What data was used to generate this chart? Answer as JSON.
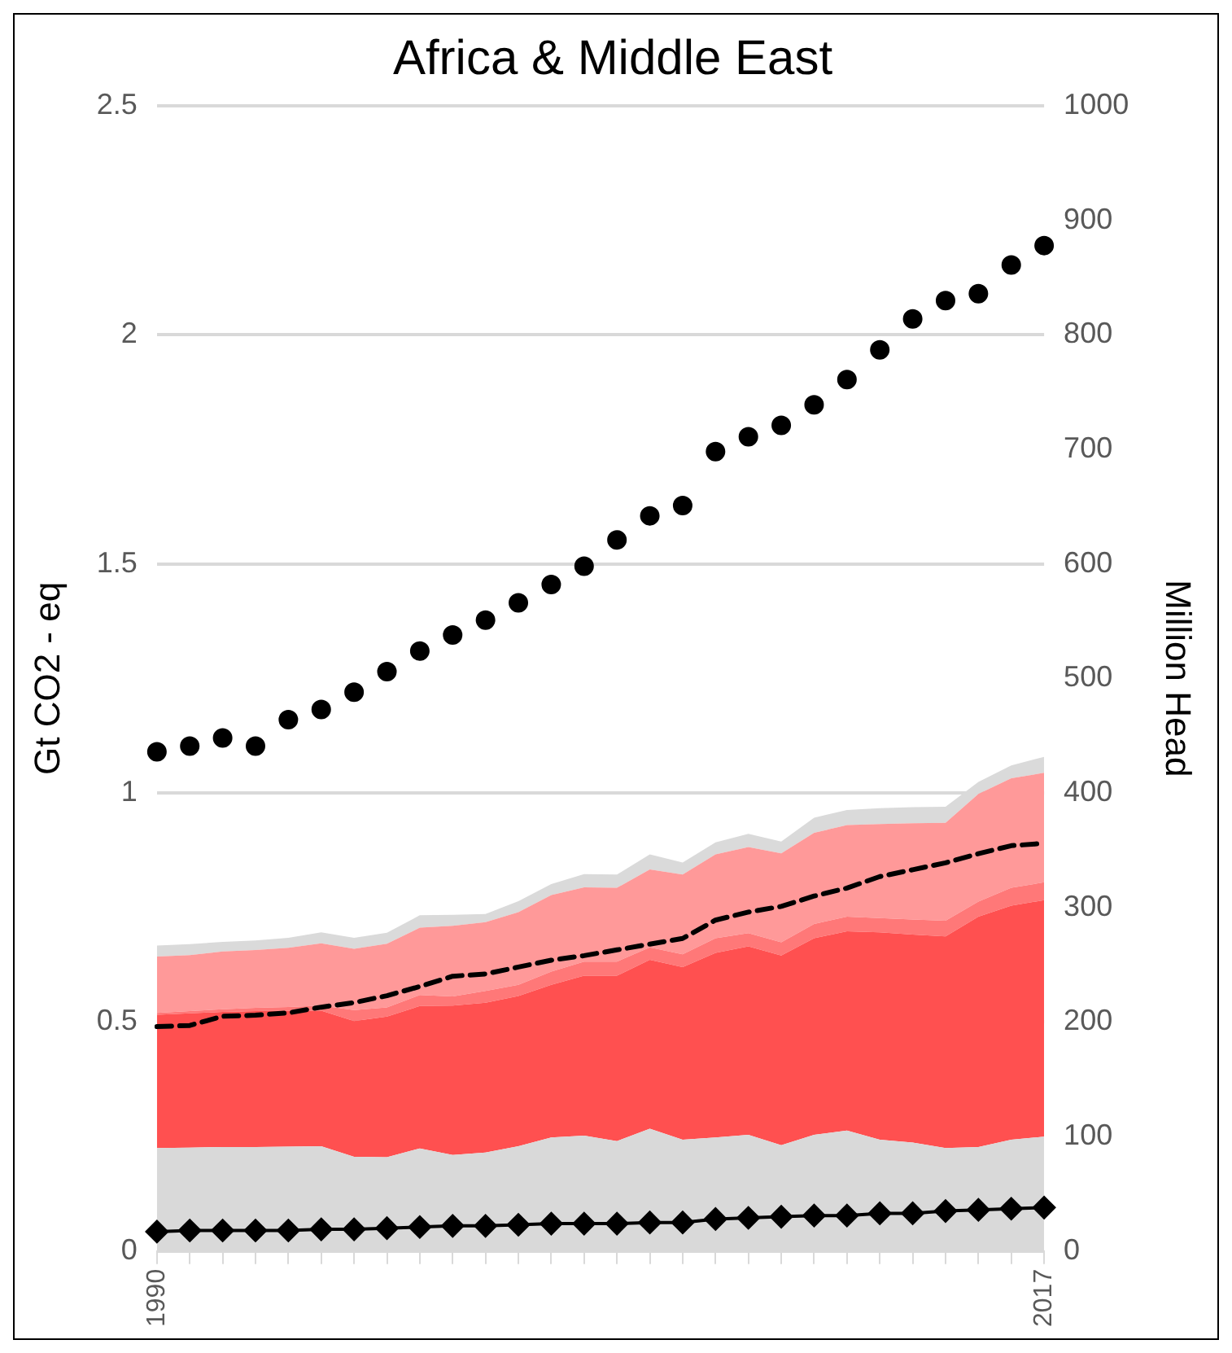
{
  "chart_data": {
    "type": "area",
    "title": "Africa & Middle East",
    "ylabel": "Gt CO2 - eq",
    "y2label": "Million Head",
    "categories": [
      "1990",
      null,
      null,
      null,
      null,
      null,
      null,
      null,
      null,
      null,
      null,
      null,
      null,
      null,
      null,
      null,
      null,
      null,
      null,
      null,
      null,
      null,
      null,
      null,
      null,
      null,
      null,
      "2017"
    ],
    "stacked": true,
    "grid": "y",
    "legend": false,
    "ylim": [
      0,
      2.5
    ],
    "yticks": [
      0,
      0.5,
      1,
      1.5,
      2,
      2.5
    ],
    "y2lim": [
      0,
      1000
    ],
    "y2ticks": [
      0,
      100,
      200,
      300,
      400,
      500,
      600,
      700,
      800,
      900,
      1000
    ],
    "series": [
      {
        "color": "#d9d9d9",
        "values": [
          0.225,
          0.226,
          0.227,
          0.227,
          0.228,
          0.229,
          0.206,
          0.205,
          0.224,
          0.21,
          0.215,
          0.229,
          0.248,
          0.252,
          0.24,
          0.267,
          0.243,
          0.248,
          0.254,
          0.231,
          0.254,
          0.263,
          0.243,
          0.237,
          0.225,
          0.227,
          0.243,
          0.25
        ]
      },
      {
        "color": "#ff5050",
        "values": [
          0.291,
          0.293,
          0.295,
          0.297,
          0.297,
          0.296,
          0.296,
          0.307,
          0.311,
          0.326,
          0.327,
          0.328,
          0.333,
          0.349,
          0.361,
          0.369,
          0.377,
          0.403,
          0.411,
          0.414,
          0.429,
          0.435,
          0.453,
          0.454,
          0.462,
          0.503,
          0.511,
          0.516
        ]
      },
      {
        "color": "#ff7878",
        "values": [
          0.004,
          0.005,
          0.006,
          0.007,
          0.008,
          0.011,
          0.024,
          0.02,
          0.024,
          0.02,
          0.026,
          0.024,
          0.029,
          0.031,
          0.031,
          0.027,
          0.028,
          0.032,
          0.029,
          0.029,
          0.031,
          0.032,
          0.031,
          0.033,
          0.034,
          0.033,
          0.039,
          0.039
        ]
      },
      {
        "color": "#ff9999",
        "values": [
          0.123,
          0.122,
          0.126,
          0.126,
          0.129,
          0.136,
          0.134,
          0.139,
          0.147,
          0.154,
          0.15,
          0.159,
          0.167,
          0.162,
          0.161,
          0.17,
          0.174,
          0.183,
          0.188,
          0.194,
          0.199,
          0.2,
          0.205,
          0.21,
          0.214,
          0.235,
          0.239,
          0.239
        ]
      },
      {
        "color": "#dadada",
        "values": [
          0.024,
          0.024,
          0.021,
          0.021,
          0.022,
          0.024,
          0.024,
          0.024,
          0.027,
          0.024,
          0.018,
          0.024,
          0.024,
          0.029,
          0.029,
          0.033,
          0.026,
          0.026,
          0.029,
          0.026,
          0.033,
          0.033,
          0.035,
          0.035,
          0.035,
          0.026,
          0.028,
          0.035
        ]
      },
      {
        "type": "scatter",
        "axis": "y2",
        "marker": "circle",
        "color": "#000000",
        "values": [
          436,
          441,
          448,
          441,
          464,
          473,
          488,
          506,
          524,
          538,
          551,
          566,
          582,
          598,
          621,
          642,
          651,
          698,
          711,
          721,
          739,
          761,
          787,
          814,
          830,
          836,
          861,
          878
        ]
      },
      {
        "type": "line",
        "axis": "y2",
        "marker": "none",
        "line_style": "dashed",
        "color": "#000000",
        "values": [
          196,
          197,
          205,
          206,
          208,
          213,
          217,
          223,
          231,
          240,
          242,
          248,
          254,
          258,
          263,
          268,
          273,
          289,
          296,
          301,
          310,
          317,
          327,
          333,
          339,
          347,
          354,
          356
        ]
      },
      {
        "type": "line",
        "axis": "y2",
        "marker": "diamond",
        "line_style": "solid",
        "color": "#000000",
        "values": [
          17,
          18,
          18,
          18,
          18,
          19,
          19,
          20,
          21,
          22,
          22,
          23,
          24,
          24,
          24,
          25,
          25,
          28,
          29,
          30,
          31,
          31,
          33,
          33,
          35,
          36,
          37,
          38
        ]
      }
    ]
  }
}
